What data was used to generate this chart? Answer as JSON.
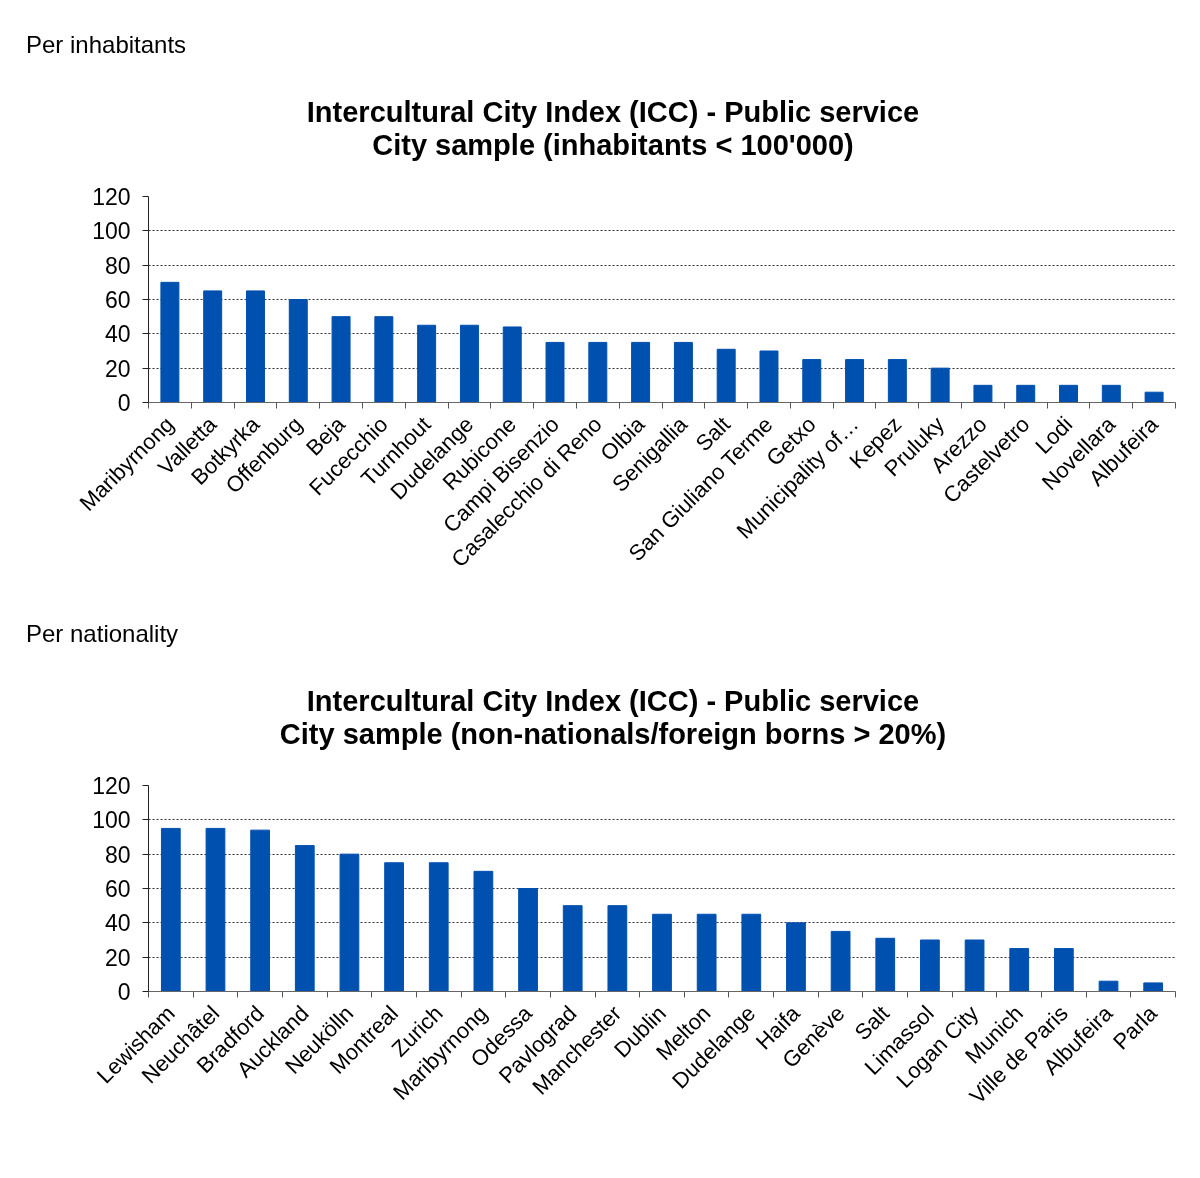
{
  "chart_data": [
    {
      "type": "bar",
      "title": "Intercultural City Index (ICC) - Public service\nCity sample (inhabitants < 100'000)",
      "annotations": [
        "Per inhabitants"
      ],
      "categories": [
        "Maribyrnong",
        "Valletta",
        "Botkyrka",
        "Offenburg",
        "Beja",
        "Fucecchio",
        "Turnhout",
        "Dudelange",
        "Rubicone",
        "Campi Bisenzio",
        "Casalecchio di Reno",
        "Olbia",
        "Senigallia",
        "Salt",
        "San Giuliano Terme",
        "Getxo",
        "Municipality of…",
        "Kepez",
        "Pruluky",
        "Arezzo",
        "Castelvetro",
        "Lodi",
        "Novellara",
        "Albufeira"
      ],
      "values": [
        70,
        65,
        65,
        60,
        50,
        50,
        45,
        45,
        44,
        35,
        35,
        35,
        35,
        31,
        30,
        25,
        25,
        25,
        20,
        10,
        10,
        10,
        10,
        6
      ],
      "color": "#0050b0",
      "ylim": [
        0,
        120
      ],
      "yticks": [
        0,
        20,
        40,
        60,
        80,
        100,
        120
      ],
      "grid": "y"
    },
    {
      "type": "bar",
      "title": "Intercultural City Index (ICC) - Public service\nCity sample (non-nationals/foreign borns > 20%)",
      "annotations": [
        "Per nationality"
      ],
      "categories": [
        "Lewisham",
        "Neuchâtel",
        "Bradford",
        "Auckland",
        "Neukölln",
        "Montreal",
        "Zurich",
        "Maribyrnong",
        "Odessa",
        "Pavlograd",
        "Manchester",
        "Dublin",
        "Melton",
        "Dudelange",
        "Haifa",
        "Genève",
        "Salt",
        "Limassol",
        "Logan City",
        "Munich",
        "Ville de Paris",
        "Albufeira",
        "Parla"
      ],
      "values": [
        95,
        95,
        94,
        85,
        80,
        75,
        75,
        70,
        60,
        50,
        50,
        45,
        45,
        45,
        40,
        35,
        31,
        30,
        30,
        25,
        25,
        6,
        5
      ],
      "color": "#0050b0",
      "ylim": [
        0,
        120
      ],
      "yticks": [
        0,
        20,
        40,
        60,
        80,
        100,
        120
      ],
      "grid": "y"
    }
  ]
}
